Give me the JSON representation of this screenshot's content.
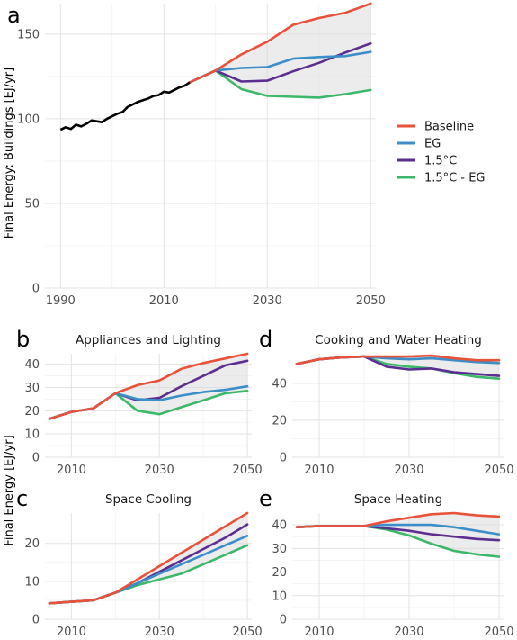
{
  "figure": {
    "ylabel_top": "Final Energy: Buildings [EJ/yr]",
    "ylabel_bottom": "Final Energy [EJ/yr]"
  },
  "legend": {
    "position": "right",
    "items": [
      {
        "label": "Baseline",
        "color": "#E8513A"
      },
      {
        "label": "EG",
        "color": "#3C8EC8"
      },
      {
        "label": "1.5°C",
        "color": "#5B2E90"
      },
      {
        "label": "1.5°C - EG",
        "color": "#3DB86B"
      }
    ]
  },
  "chart_data": [
    {
      "panel_label": "a",
      "type": "line",
      "title": "",
      "ylabel": "Final Energy: Buildings [EJ/yr]",
      "xlim": [
        1987,
        2051
      ],
      "ylim": [
        0,
        168
      ],
      "xticks": [
        1990,
        2010,
        2030,
        2050
      ],
      "yticks": [
        0,
        50,
        100,
        150
      ],
      "grid": true,
      "history": {
        "x": [
          1990,
          1991,
          1992,
          1993,
          1994,
          1995,
          1996,
          1997,
          1998,
          1999,
          2000,
          2001,
          2002,
          2003,
          2004,
          2005,
          2006,
          2007,
          2008,
          2009,
          2010,
          2011,
          2012,
          2013,
          2014,
          2015
        ],
        "y": [
          93.5,
          95,
          94,
          96.5,
          95.5,
          97,
          99,
          98.5,
          98,
          100,
          101.5,
          103,
          104,
          107,
          108.5,
          110,
          111,
          112,
          113.5,
          114,
          116,
          115.5,
          117,
          118.5,
          119.5,
          121.5
        ]
      },
      "series": [
        {
          "name": "Baseline",
          "x": [
            2015,
            2020,
            2025,
            2030,
            2035,
            2040,
            2045,
            2050
          ],
          "y": [
            121.5,
            128.5,
            138,
            145.5,
            155.5,
            159.5,
            162.5,
            168
          ]
        },
        {
          "name": "EG",
          "x": [
            2015,
            2020,
            2025,
            2030,
            2035,
            2040,
            2045,
            2050
          ],
          "y": [
            121.5,
            128.5,
            130,
            130.5,
            135.5,
            136.5,
            137,
            139.5
          ]
        },
        {
          "name": "1.5°C",
          "x": [
            2015,
            2020,
            2025,
            2030,
            2035,
            2040,
            2045,
            2050
          ],
          "y": [
            121.5,
            128.5,
            122,
            122.5,
            128,
            133,
            139,
            144.5
          ]
        },
        {
          "name": "1.5°C - EG",
          "x": [
            2015,
            2020,
            2025,
            2030,
            2035,
            2040,
            2045,
            2050
          ],
          "y": [
            121.5,
            128.5,
            117.5,
            113.5,
            113,
            112.5,
            114.5,
            117
          ]
        }
      ]
    },
    {
      "panel_label": "b",
      "type": "line",
      "title": "Appliances and Lighting",
      "xlim": [
        2004,
        2051
      ],
      "ylim": [
        0,
        44.5
      ],
      "xticks": [
        2010,
        2030,
        2050
      ],
      "yticks": [
        0,
        10,
        20,
        30,
        40
      ],
      "grid": true,
      "series": [
        {
          "name": "Baseline",
          "x": [
            2005,
            2010,
            2015,
            2020,
            2025,
            2030,
            2035,
            2040,
            2045,
            2050
          ],
          "y": [
            16.5,
            19.5,
            21,
            27.5,
            31,
            33,
            38,
            40.5,
            42.5,
            44.5
          ]
        },
        {
          "name": "EG",
          "x": [
            2005,
            2010,
            2015,
            2020,
            2025,
            2030,
            2035,
            2040,
            2045,
            2050
          ],
          "y": [
            16.5,
            19.5,
            21,
            27.5,
            25,
            24.5,
            26.5,
            28,
            29,
            30.5
          ]
        },
        {
          "name": "1.5°C",
          "x": [
            2005,
            2010,
            2015,
            2020,
            2025,
            2030,
            2035,
            2040,
            2045,
            2050
          ],
          "y": [
            16.5,
            19.5,
            21,
            27.5,
            24.5,
            25.5,
            30.5,
            35,
            39.5,
            41.5
          ]
        },
        {
          "name": "1.5°C - EG",
          "x": [
            2005,
            2010,
            2015,
            2020,
            2025,
            2030,
            2035,
            2040,
            2045,
            2050
          ],
          "y": [
            16.5,
            19.5,
            21,
            27.5,
            20,
            18.5,
            21.5,
            24.5,
            27.5,
            28.5
          ]
        }
      ]
    },
    {
      "panel_label": "d",
      "type": "line",
      "title": "Cooking and Water Heating",
      "xlim": [
        2004,
        2051
      ],
      "ylim": [
        0,
        56
      ],
      "xticks": [
        2010,
        2030,
        2050
      ],
      "yticks": [
        0,
        20,
        40
      ],
      "grid": true,
      "series": [
        {
          "name": "Baseline",
          "x": [
            2005,
            2010,
            2015,
            2020,
            2025,
            2030,
            2035,
            2040,
            2045,
            2050
          ],
          "y": [
            50.5,
            53,
            54,
            54.5,
            54.5,
            54.5,
            55,
            53.5,
            52.5,
            52.5
          ]
        },
        {
          "name": "EG",
          "x": [
            2005,
            2010,
            2015,
            2020,
            2025,
            2030,
            2035,
            2040,
            2045,
            2050
          ],
          "y": [
            50.5,
            53,
            54,
            54.5,
            53.5,
            53,
            53.5,
            52.5,
            51.5,
            51
          ]
        },
        {
          "name": "1.5°C",
          "x": [
            2005,
            2010,
            2015,
            2020,
            2025,
            2030,
            2035,
            2040,
            2045,
            2050
          ],
          "y": [
            50.5,
            53,
            54,
            54.5,
            49,
            47.5,
            48,
            46,
            45,
            44
          ]
        },
        {
          "name": "1.5°C - EG",
          "x": [
            2005,
            2010,
            2015,
            2020,
            2025,
            2030,
            2035,
            2040,
            2045,
            2050
          ],
          "y": [
            50.5,
            53,
            54,
            54.5,
            50.5,
            49,
            48,
            45.5,
            43.5,
            42.5
          ]
        }
      ]
    },
    {
      "panel_label": "c",
      "type": "line",
      "title": "Space Cooling",
      "xlim": [
        2004,
        2051
      ],
      "ylim": [
        0,
        28
      ],
      "xticks": [
        2010,
        2030,
        2050
      ],
      "yticks": [
        0,
        10,
        20
      ],
      "grid": true,
      "series": [
        {
          "name": "Baseline",
          "x": [
            2005,
            2010,
            2015,
            2020,
            2025,
            2030,
            2035,
            2040,
            2045,
            2050
          ],
          "y": [
            4.2,
            4.6,
            5,
            7,
            10.5,
            14,
            17.5,
            21,
            24.5,
            28
          ]
        },
        {
          "name": "EG",
          "x": [
            2005,
            2010,
            2015,
            2020,
            2025,
            2030,
            2035,
            2040,
            2045,
            2050
          ],
          "y": [
            4.2,
            4.6,
            5,
            7,
            9.5,
            12,
            14.5,
            17,
            19.5,
            22
          ]
        },
        {
          "name": "1.5°C",
          "x": [
            2005,
            2010,
            2015,
            2020,
            2025,
            2030,
            2035,
            2040,
            2045,
            2050
          ],
          "y": [
            4.2,
            4.6,
            5,
            7,
            9.5,
            12.5,
            15.5,
            18.5,
            21.5,
            25
          ]
        },
        {
          "name": "1.5°C - EG",
          "x": [
            2005,
            2010,
            2015,
            2020,
            2025,
            2030,
            2035,
            2040,
            2045,
            2050
          ],
          "y": [
            4.2,
            4.6,
            5,
            7,
            9,
            10.5,
            12,
            14.5,
            17,
            19.5
          ]
        }
      ]
    },
    {
      "panel_label": "e",
      "type": "line",
      "title": "Space Heating",
      "xlim": [
        2004,
        2051
      ],
      "ylim": [
        0,
        45
      ],
      "xticks": [
        2010,
        2030,
        2050
      ],
      "yticks": [
        0,
        10,
        20,
        30,
        40
      ],
      "grid": true,
      "series": [
        {
          "name": "Baseline",
          "x": [
            2005,
            2010,
            2015,
            2020,
            2025,
            2030,
            2035,
            2040,
            2045,
            2050
          ],
          "y": [
            39,
            39.5,
            39.5,
            39.5,
            41.5,
            43,
            44.5,
            45,
            44,
            43.5
          ]
        },
        {
          "name": "EG",
          "x": [
            2005,
            2010,
            2015,
            2020,
            2025,
            2030,
            2035,
            2040,
            2045,
            2050
          ],
          "y": [
            39,
            39.5,
            39.5,
            39.5,
            40,
            40,
            40,
            39,
            37.5,
            36
          ]
        },
        {
          "name": "1.5°C",
          "x": [
            2005,
            2010,
            2015,
            2020,
            2025,
            2030,
            2035,
            2040,
            2045,
            2050
          ],
          "y": [
            39,
            39.5,
            39.5,
            39.5,
            38.5,
            37.5,
            36,
            35,
            34,
            33.5
          ]
        },
        {
          "name": "1.5°C - EG",
          "x": [
            2005,
            2010,
            2015,
            2020,
            2025,
            2030,
            2035,
            2040,
            2045,
            2050
          ],
          "y": [
            39,
            39.5,
            39.5,
            39.5,
            38,
            35.5,
            32,
            29,
            27.5,
            26.5
          ]
        }
      ]
    }
  ]
}
